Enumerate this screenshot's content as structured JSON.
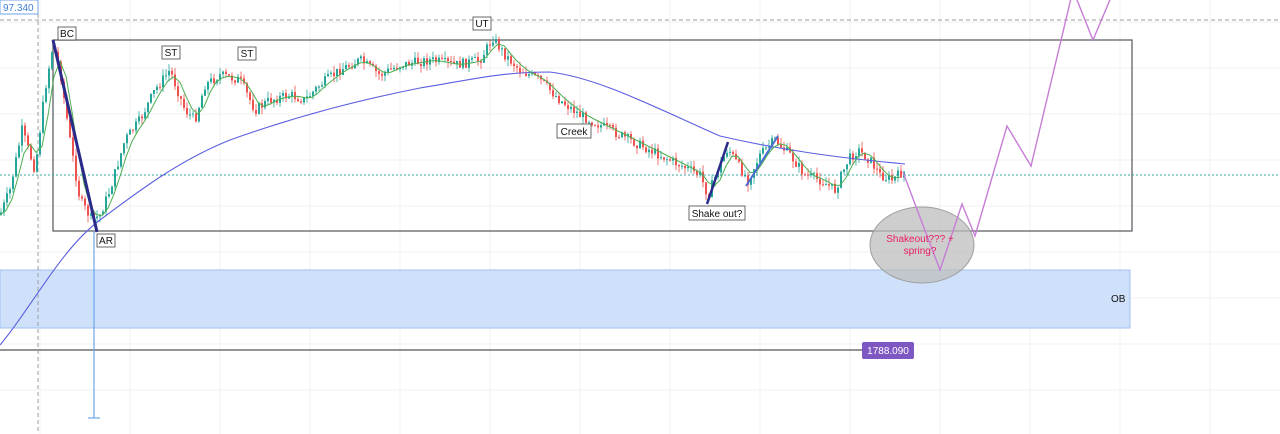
{
  "chart": {
    "price_tag_top": "97.340",
    "price_tag_bottom": "1788.090",
    "colors": {
      "up": "#26a69a",
      "down": "#ef5350",
      "ma_blue": "#5b5fe0",
      "ma_green": "#4caf50",
      "box": "#5f6368",
      "ob_fill": "#cfe0fb",
      "projection": "#c77dd6",
      "price_tag_bg": "#7e57c2",
      "ellipse": "#b0b0b0",
      "annotation_text": "#e91e63"
    }
  },
  "labels": {
    "bc": "BC",
    "st1": "ST",
    "st2": "ST",
    "ut": "UT",
    "ar": "AR",
    "creek": "Creek",
    "shake_out": "Shake out?",
    "shakeout_spring_line1": "Shakeout??? +",
    "shakeout_spring_line2": "spring?",
    "ob": "OB"
  }
}
